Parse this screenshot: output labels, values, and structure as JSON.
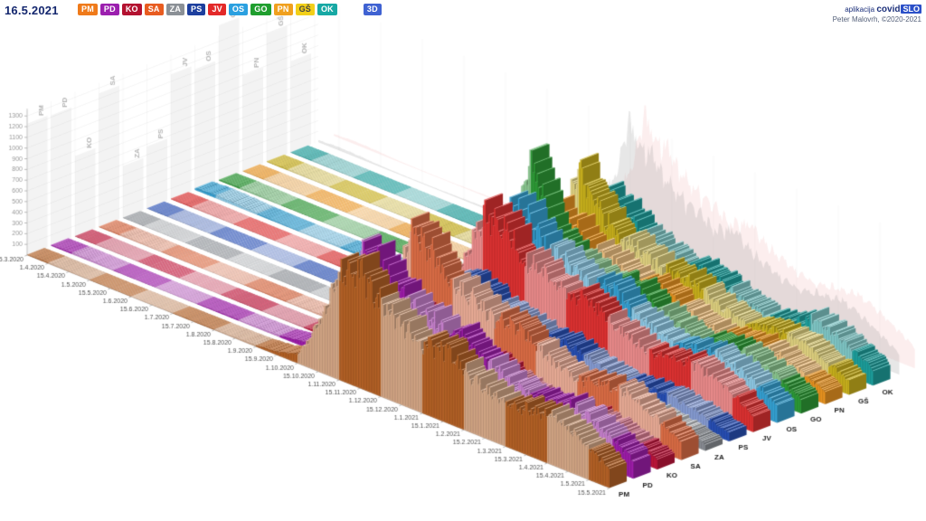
{
  "header": {
    "date": "16.5.2021",
    "view_toggle": "3D",
    "app_label": "aplikacija",
    "app_name_bold": "covid",
    "app_name_badge": "SLO",
    "credit": "Peter Malovrh, ©2020-2021"
  },
  "legend": {
    "regions": [
      {
        "code": "PM",
        "color": "#ef7a1a",
        "text": "#ffffff"
      },
      {
        "code": "PD",
        "color": "#9b1fae",
        "text": "#ffffff"
      },
      {
        "code": "KO",
        "color": "#b31230",
        "text": "#ffffff"
      },
      {
        "code": "SA",
        "color": "#e85c20",
        "text": "#ffffff"
      },
      {
        "code": "ZA",
        "color": "#8b9096",
        "text": "#ffffff"
      },
      {
        "code": "PS",
        "color": "#1d3f9e",
        "text": "#ffffff"
      },
      {
        "code": "JV",
        "color": "#e32929",
        "text": "#ffffff"
      },
      {
        "code": "OS",
        "color": "#2ba0e0",
        "text": "#ffffff"
      },
      {
        "code": "GO",
        "color": "#1f9e2e",
        "text": "#ffffff"
      },
      {
        "code": "PN",
        "color": "#f0a01e",
        "text": "#ffffff"
      },
      {
        "code": "GŠ",
        "color": "#f2cf18",
        "text": "#444444"
      },
      {
        "code": "OK",
        "color": "#17a8a4",
        "text": "#ffffff"
      }
    ]
  },
  "chart_data": {
    "type": "3d-ridge-bar",
    "title": "",
    "ylim": [
      0,
      1400
    ],
    "y_ticks": [
      100,
      200,
      300,
      400,
      500,
      600,
      700,
      800,
      900,
      1000,
      1100,
      1200,
      1300
    ],
    "days_per_interval": 15,
    "time_ticks": [
      "15.3.2020",
      "1.4.2020",
      "15.4.2020",
      "1.5.2020",
      "15.5.2020",
      "1.6.2020",
      "15.6.2020",
      "1.7.2020",
      "15.7.2020",
      "1.8.2020",
      "15.8.2020",
      "1.9.2020",
      "15.9.2020",
      "1.10.2020",
      "15.10.2020",
      "1.11.2020",
      "15.11.2020",
      "1.12.2020",
      "15.12.2020",
      "1.1.2021",
      "15.1.2021",
      "1.2.2021",
      "15.2.2021",
      "1.3.2021",
      "15.3.2021",
      "1.4.2021",
      "15.4.2021",
      "1.5.2021",
      "15.5.2021"
    ],
    "regions": [
      {
        "code": "PM",
        "color": "#b86428",
        "values": [
          5,
          8,
          6,
          3,
          2,
          2,
          3,
          4,
          6,
          6,
          8,
          12,
          30,
          90,
          450,
          1000,
          1100,
          850,
          780,
          650,
          680,
          560,
          450,
          400,
          430,
          470,
          400,
          300,
          180
        ]
      },
      {
        "code": "PD",
        "color": "#a21fae",
        "values": [
          8,
          12,
          10,
          5,
          3,
          3,
          4,
          6,
          8,
          9,
          11,
          16,
          45,
          130,
          550,
          1150,
          1050,
          820,
          760,
          640,
          670,
          550,
          440,
          390,
          420,
          460,
          390,
          290,
          170
        ]
      },
      {
        "code": "KO",
        "color": "#c2163c",
        "values": [
          3,
          5,
          4,
          2,
          1,
          1,
          2,
          2,
          4,
          4,
          5,
          8,
          25,
          70,
          320,
          650,
          600,
          470,
          430,
          370,
          390,
          320,
          250,
          220,
          240,
          260,
          220,
          165,
          95
        ]
      },
      {
        "code": "SA",
        "color": "#e07048",
        "values": [
          6,
          10,
          8,
          4,
          2,
          2,
          3,
          5,
          7,
          7,
          9,
          14,
          40,
          115,
          520,
          1100,
          1000,
          780,
          720,
          610,
          640,
          525,
          420,
          370,
          400,
          440,
          370,
          275,
          160
        ]
      },
      {
        "code": "ZA",
        "color": "#8c9096",
        "values": [
          2,
          3,
          3,
          1,
          1,
          1,
          1,
          2,
          2,
          2,
          3,
          5,
          15,
          45,
          210,
          430,
          400,
          310,
          290,
          245,
          260,
          210,
          165,
          145,
          160,
          175,
          145,
          110,
          62
        ]
      },
      {
        "code": "PS",
        "color": "#2a52b8",
        "values": [
          3,
          4,
          3,
          2,
          1,
          1,
          1,
          2,
          3,
          3,
          4,
          6,
          20,
          55,
          260,
          540,
          500,
          390,
          360,
          305,
          320,
          265,
          210,
          180,
          200,
          215,
          180,
          135,
          78
        ]
      },
      {
        "code": "JV",
        "color": "#e33434",
        "values": [
          5,
          8,
          7,
          3,
          2,
          2,
          3,
          4,
          6,
          6,
          8,
          13,
          38,
          110,
          500,
          1050,
          970,
          760,
          700,
          595,
          625,
          515,
          410,
          360,
          390,
          430,
          365,
          270,
          155
        ]
      },
      {
        "code": "OS",
        "color": "#38a5d8",
        "values": [
          18,
          28,
          22,
          11,
          7,
          6,
          8,
          12,
          16,
          17,
          20,
          32,
          80,
          220,
          700,
          1000,
          950,
          760,
          700,
          600,
          630,
          520,
          415,
          365,
          395,
          435,
          370,
          275,
          160
        ]
      },
      {
        "code": "GO",
        "color": "#2f9e38",
        "values": [
          8,
          12,
          10,
          5,
          3,
          3,
          4,
          6,
          8,
          8,
          10,
          16,
          45,
          130,
          450,
          1400,
          750,
          600,
          560,
          520,
          545,
          450,
          360,
          315,
          345,
          375,
          320,
          235,
          135
        ]
      },
      {
        "code": "PN",
        "color": "#ee9722",
        "values": [
          3,
          5,
          4,
          2,
          1,
          1,
          2,
          3,
          4,
          4,
          5,
          9,
          28,
          80,
          380,
          780,
          720,
          560,
          520,
          440,
          465,
          385,
          305,
          270,
          295,
          320,
          270,
          200,
          115
        ]
      },
      {
        "code": "GŠ",
        "color": "#cdb41e",
        "values": [
          5,
          8,
          6,
          3,
          2,
          2,
          3,
          4,
          6,
          6,
          8,
          12,
          35,
          100,
          450,
          1150,
          800,
          600,
          560,
          475,
          500,
          415,
          330,
          290,
          315,
          345,
          290,
          215,
          125
        ]
      },
      {
        "code": "OK",
        "color": "#1fa3a0",
        "values": [
          4,
          7,
          5,
          3,
          2,
          2,
          2,
          3,
          5,
          5,
          6,
          10,
          28,
          80,
          360,
          750,
          680,
          530,
          490,
          420,
          445,
          365,
          290,
          255,
          280,
          400,
          340,
          250,
          145
        ]
      }
    ]
  }
}
